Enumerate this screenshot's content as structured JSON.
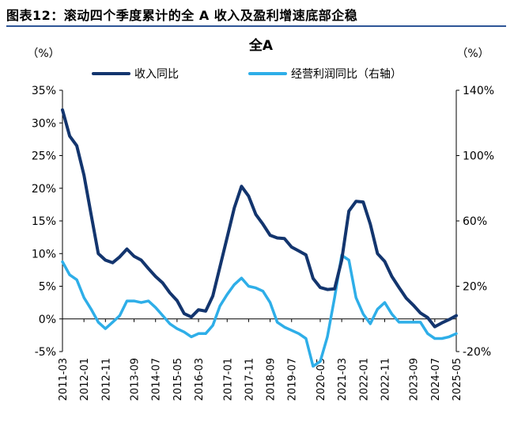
{
  "figure_label": "图表12：",
  "figure_title": "滚动四个季度累计的全 A 收入及盈利增速底部企稳",
  "colors": {
    "revenue": "#13356e",
    "cashflow": "#2eaee8",
    "rule": "#2e5597"
  },
  "chart_data": {
    "type": "line",
    "title": "全A",
    "left_unit": "（%）",
    "right_unit": "（%）",
    "y_left": {
      "min": -5,
      "max": 35,
      "ticks": [
        -5,
        0,
        5,
        10,
        15,
        20,
        25,
        30,
        35
      ],
      "tick_labels": [
        "-5%",
        "0%",
        "5%",
        "10%",
        "15%",
        "20%",
        "25%",
        "30%",
        "35%"
      ]
    },
    "y_right": {
      "min": -20,
      "max": 140,
      "ticks": [
        -20,
        20,
        60,
        100,
        140
      ],
      "tick_labels": [
        "-20%",
        "20%",
        "60%",
        "100%",
        "140%"
      ]
    },
    "x_tick_labels": [
      "2011-03",
      "2012-01",
      "2012-11",
      "2013-09",
      "2014-07",
      "2015-05",
      "2016-03",
      "2017-01",
      "2017-11",
      "2018-09",
      "2019-07",
      "2020-05",
      "2021-03",
      "2022-01",
      "2022-11",
      "2023-09",
      "2024-07",
      "2025-05"
    ],
    "series": [
      {
        "name": "收入同比",
        "axis": "left",
        "values": [
          32.0,
          28.0,
          26.5,
          22.0,
          16.0,
          10.0,
          9.0,
          8.6,
          9.5,
          10.7,
          9.6,
          9.0,
          7.7,
          6.5,
          5.5,
          4.0,
          2.8,
          0.8,
          0.3,
          1.4,
          1.2,
          3.5,
          8.0,
          12.5,
          17.0,
          20.3,
          18.8,
          16.0,
          14.5,
          12.8,
          12.4,
          12.3,
          11.0,
          10.4,
          9.8,
          6.2,
          4.8,
          4.5,
          4.6,
          9.0,
          16.5,
          18.0,
          17.9,
          14.5,
          10.0,
          8.8,
          6.5,
          4.8,
          3.2,
          2.1,
          0.9,
          0.2,
          -1.2,
          -0.6,
          -0.1,
          0.5
        ]
      },
      {
        "name": "经营利润同比（右轴）",
        "axis": "right",
        "values": [
          35,
          27,
          24,
          13,
          6,
          -2,
          -6,
          -2,
          2,
          11,
          11,
          10,
          11,
          7,
          2,
          -3,
          -6,
          -8,
          -11,
          -9,
          -9,
          -4,
          8,
          15,
          21,
          25,
          20,
          19,
          17,
          10,
          -2,
          -5,
          -7,
          -9,
          -12,
          -29,
          -26,
          -11,
          13,
          39,
          36,
          13,
          3,
          -3,
          6,
          10,
          3,
          -2,
          -2,
          -2,
          -2,
          -9,
          -12,
          -12,
          -11,
          -9
        ]
      }
    ]
  }
}
